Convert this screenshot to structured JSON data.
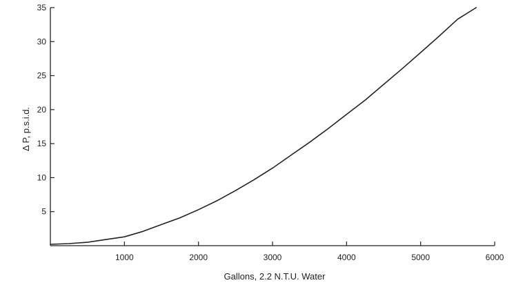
{
  "chart_data": {
    "type": "line",
    "xlabel": "Gallons, 2.2 N.T.U. Water",
    "ylabel": "Δ P, p.s.i.d.",
    "xlim": [
      0,
      6000
    ],
    "ylim": [
      0,
      35
    ],
    "x_ticks": [
      1000,
      2000,
      3000,
      4000,
      5000,
      6000
    ],
    "x_tick_labels": [
      "1000",
      "2000",
      "3000",
      "4000",
      "5000",
      "6000"
    ],
    "y_ticks": [
      5,
      10,
      15,
      20,
      25,
      30,
      35
    ],
    "y_tick_labels": [
      "5",
      "10",
      "15",
      "20",
      "25",
      "30",
      "35"
    ],
    "grid": false,
    "series": [
      {
        "color": "#222222",
        "x": [
          0,
          250,
          500,
          750,
          1000,
          1250,
          1500,
          1750,
          2000,
          2250,
          2500,
          2750,
          3000,
          3250,
          3500,
          3750,
          4000,
          4250,
          4500,
          4750,
          5000,
          5250,
          5500,
          5750
        ],
        "y": [
          0.2,
          0.3,
          0.5,
          0.9,
          1.3,
          2.1,
          3.1,
          4.1,
          5.3,
          6.6,
          8.1,
          9.7,
          11.4,
          13.3,
          15.2,
          17.2,
          19.3,
          21.4,
          23.7,
          26.0,
          28.4,
          30.8,
          33.3,
          35.0
        ]
      }
    ]
  }
}
